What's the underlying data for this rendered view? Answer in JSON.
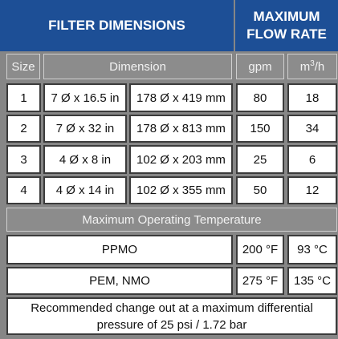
{
  "header": {
    "left": "FILTER DIMENSIONS",
    "right_line1": "MAXIMUM",
    "right_line2": "FLOW RATE"
  },
  "subheader": {
    "size": "Size",
    "dimension": "Dimension",
    "gpm": "gpm",
    "m3h_base": "m",
    "m3h_sup": "3",
    "m3h_tail": "/h"
  },
  "rows": [
    {
      "size": "1",
      "inches": "7 Ø x 16.5 in",
      "mm": "178 Ø x 419 mm",
      "gpm": "80",
      "m3h": "18"
    },
    {
      "size": "2",
      "inches": "7 Ø x 32 in",
      "mm": "178 Ø x 813 mm",
      "gpm": "150",
      "m3h": "34"
    },
    {
      "size": "3",
      "inches": "4 Ø x 8 in",
      "mm": "102 Ø x 203 mm",
      "gpm": "25",
      "m3h": "6"
    },
    {
      "size": "4",
      "inches": "4 Ø x 14 in",
      "mm": "102 Ø x 355 mm",
      "gpm": "50",
      "m3h": "12"
    }
  ],
  "temperature": {
    "title": "Maximum Operating Temperature",
    "rows": [
      {
        "material": "PPMO",
        "fahrenheit": "200 °F",
        "celsius": "93 °C"
      },
      {
        "material": "PEM, NMO",
        "fahrenheit": "275 °F",
        "celsius": "135 °C"
      }
    ]
  },
  "note": "Recommended change out at a maximum differential pressure of 25 psi / 1.72 bar",
  "colors": {
    "header_blue": "#1d4f96",
    "subheader_gray": "#8c8c8c"
  }
}
